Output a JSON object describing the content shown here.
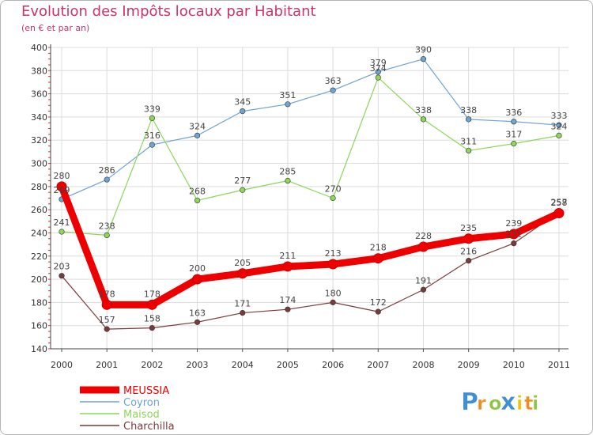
{
  "chart_data": {
    "type": "line",
    "title": "Evolution des Impôts locaux par Habitant",
    "subtitle": "(en € et par an)",
    "xlabel": "",
    "ylabel": "",
    "categories": [
      "2000",
      "2001",
      "2002",
      "2003",
      "2004",
      "2005",
      "2006",
      "2007",
      "2008",
      "2009",
      "2010",
      "2011"
    ],
    "ylim": [
      140,
      400
    ],
    "yticks": [
      140,
      160,
      180,
      200,
      220,
      240,
      260,
      280,
      300,
      320,
      340,
      360,
      380,
      400
    ],
    "grid": true,
    "legend_position": "bottom-left",
    "series": [
      {
        "name": "MEUSSIA",
        "color": "#ee0000",
        "values": [
          280,
          178,
          178,
          200,
          205,
          211,
          213,
          218,
          228,
          235,
          239,
          257
        ]
      },
      {
        "name": "Coyron",
        "color": "#6fa3d1",
        "values": [
          269,
          286,
          316,
          324,
          345,
          351,
          363,
          379,
          390,
          338,
          336,
          333
        ]
      },
      {
        "name": "Maisod",
        "color": "#8cd65a",
        "values": [
          241,
          238,
          339,
          268,
          277,
          285,
          270,
          374,
          338,
          311,
          317,
          324
        ]
      },
      {
        "name": "Charchilla",
        "color": "#7a3a3a",
        "values": [
          203,
          157,
          158,
          163,
          171,
          174,
          180,
          172,
          191,
          216,
          231,
          258
        ]
      }
    ]
  },
  "brand": {
    "letters": [
      "P",
      "r",
      "o",
      "x",
      "i",
      "t",
      "i"
    ],
    "colors": [
      "#3f8fd4",
      "#f28a1c",
      "#8cc63f",
      "#3f8fd4",
      "#f2c200",
      "#f28a1c",
      "#8cc63f"
    ]
  }
}
